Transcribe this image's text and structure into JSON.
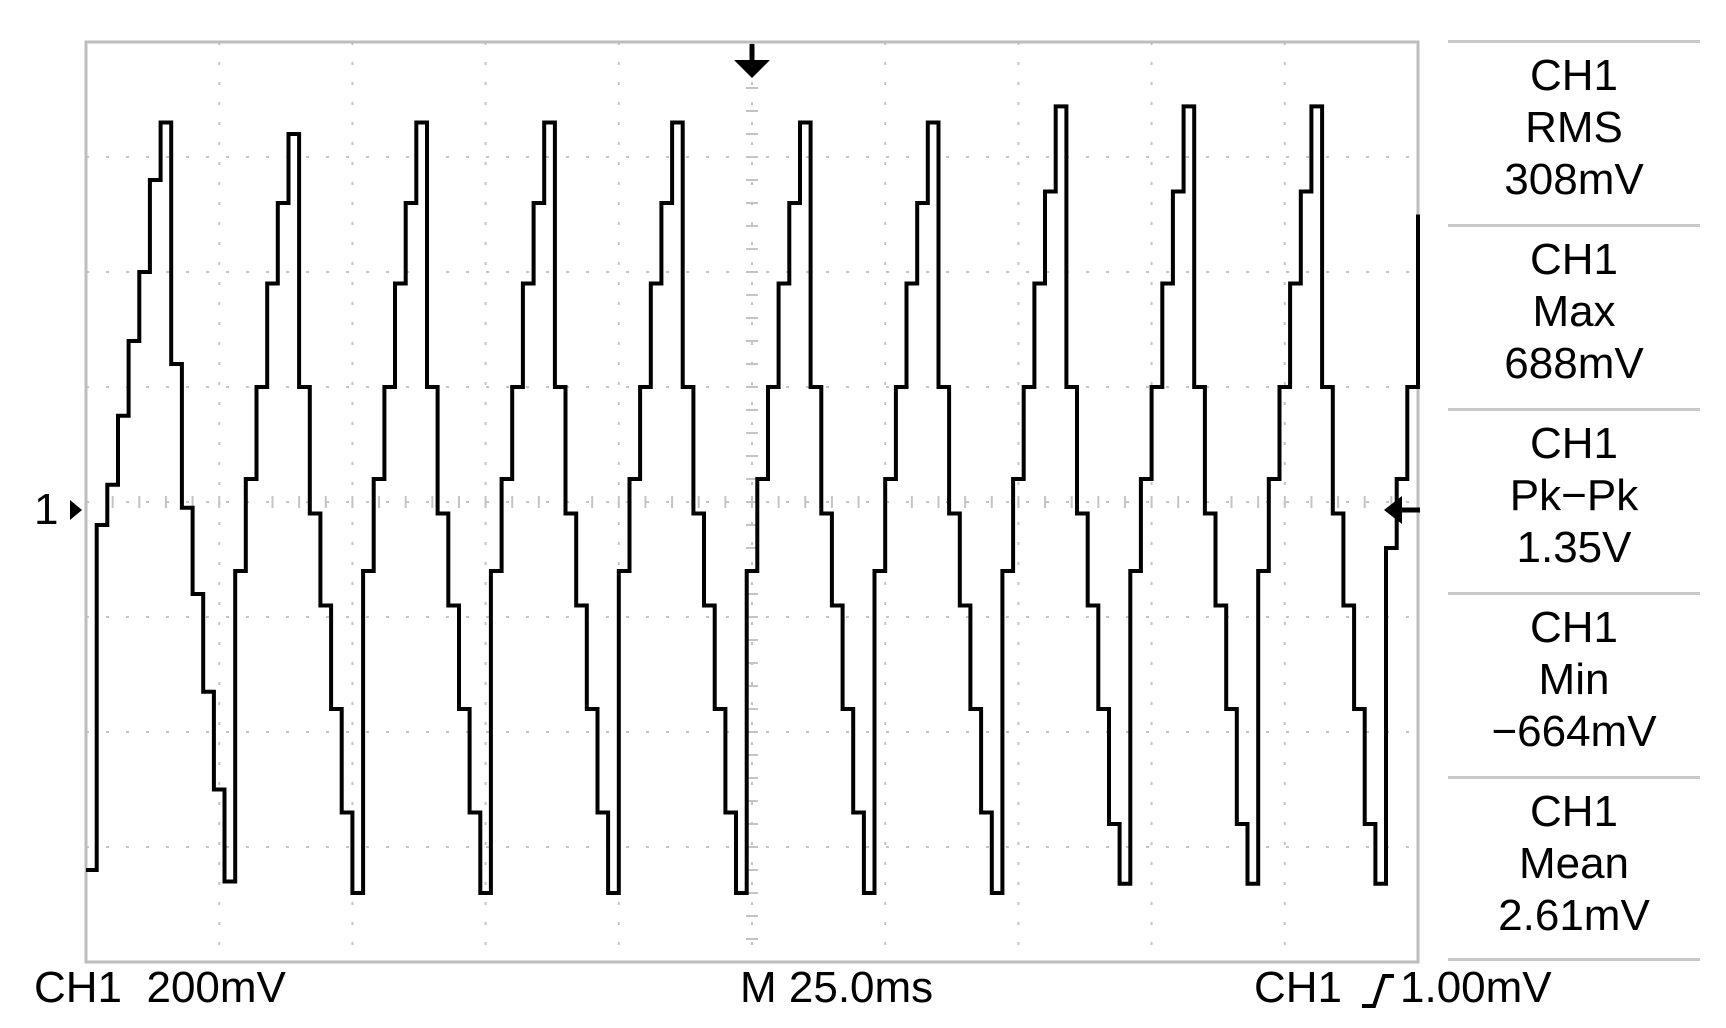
{
  "chart_data": {
    "type": "line",
    "title": "",
    "xlabel": "",
    "ylabel": "",
    "grid": true,
    "x_divisions": 10,
    "y_divisions": 8,
    "time_per_div_ms": 25.0,
    "volts_per_div_mV": 200,
    "x_range_ms": [
      0,
      250
    ],
    "y_range_mV": [
      -800,
      800
    ],
    "series": [
      {
        "x": [
          0,
          2,
          4,
          6,
          8,
          10,
          12,
          14,
          16,
          18,
          20,
          22,
          24,
          26,
          28,
          30,
          32,
          34,
          36,
          38,
          40,
          42,
          44,
          46,
          48,
          50,
          52,
          54,
          56,
          58,
          60,
          62,
          64,
          66,
          68,
          70,
          72,
          74,
          76,
          78,
          80,
          82,
          84,
          86,
          88,
          90,
          92,
          94,
          96,
          98,
          100,
          102,
          104,
          106,
          108,
          110,
          112,
          114,
          116,
          118,
          120,
          122,
          124,
          126,
          128,
          130,
          132,
          134,
          136,
          138,
          140,
          142,
          144,
          146,
          148,
          150,
          152,
          154,
          156,
          158,
          160,
          162,
          164,
          166,
          168,
          170,
          172,
          174,
          176,
          178,
          180,
          182,
          184,
          186,
          188,
          190,
          192,
          194,
          196,
          198,
          200,
          202,
          204,
          206,
          208,
          210,
          212,
          214,
          216,
          218,
          220,
          222,
          224,
          226,
          228,
          230,
          232,
          234,
          236,
          238,
          240,
          242,
          244,
          246,
          248,
          250
        ],
        "y": [
          -640,
          -40,
          30,
          150,
          280,
          400,
          560,
          660,
          240,
          -10,
          -160,
          -330,
          -500,
          -660,
          -120,
          40,
          200,
          380,
          520,
          640,
          200,
          -20,
          -180,
          -360,
          -540,
          -680,
          -120,
          40,
          200,
          380,
          520,
          660,
          200,
          -20,
          -180,
          -360,
          -540,
          -680,
          -120,
          40,
          200,
          380,
          520,
          660,
          200,
          -20,
          -180,
          -360,
          -540,
          -680,
          -120,
          40,
          200,
          380,
          520,
          660,
          200,
          -20,
          -180,
          -360,
          -540,
          -680,
          -120,
          40,
          200,
          380,
          520,
          660,
          200,
          -20,
          -180,
          -360,
          -540,
          -680,
          -120,
          40,
          200,
          380,
          520,
          660,
          200,
          -20,
          -180,
          -360,
          -540,
          -680,
          -120,
          40,
          200,
          380,
          540,
          688,
          200,
          -20,
          -180,
          -360,
          -560,
          -664,
          -120,
          40,
          200,
          380,
          540,
          688,
          200,
          -20,
          -180,
          -360,
          -560,
          -664,
          -120,
          40,
          200,
          380,
          540,
          688,
          200,
          -20,
          -180,
          -360,
          -560,
          -664,
          -80,
          40,
          200,
          500
        ]
      }
    ]
  },
  "measurements": [
    {
      "channel": "CH1",
      "label": "RMS",
      "value": "308mV"
    },
    {
      "channel": "CH1",
      "label": "Max",
      "value": "688mV"
    },
    {
      "channel": "CH1",
      "label": "Pk−Pk",
      "value": "1.35V"
    },
    {
      "channel": "CH1",
      "label": "Min",
      "value": "−664mV"
    },
    {
      "channel": "CH1",
      "label": "Mean",
      "value": "2.61mV"
    }
  ],
  "status": {
    "channel_scale": "CH1  200mV",
    "timebase": "M 25.0ms",
    "trigger_channel": "CH1",
    "trigger_slope_icon": "rising-edge-icon",
    "trigger_level": "1.00mV"
  },
  "markers": {
    "channel_ref": "1",
    "trigger_position_icon": "down-arrow-icon",
    "trigger_level_icon": "left-arrow-icon"
  }
}
